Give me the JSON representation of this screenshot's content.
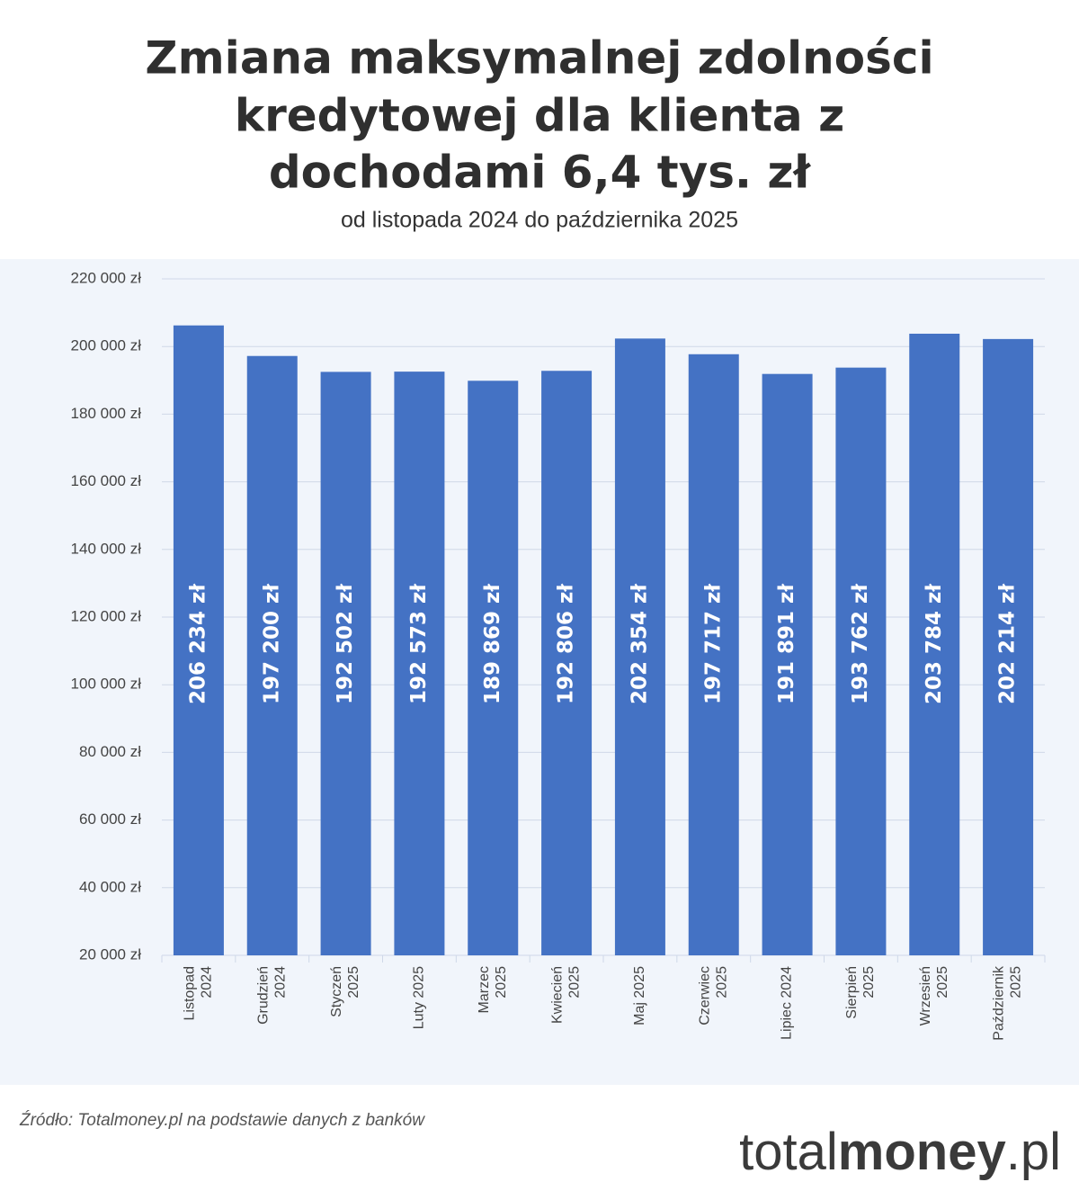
{
  "chart_data": {
    "type": "bar",
    "title": [
      "Zmiana maksymalnej zdolności",
      "kredytowej dla klienta z",
      "dochodami 6,4 tys. zł"
    ],
    "subtitle": "od listopada 2024 do października 2025",
    "categories": [
      "Listopad\n2024",
      "Grudzień\n2024",
      "Styczeń\n2025",
      "Luty 2025",
      "Marzec\n2025",
      "Kwiecień\n2025",
      "Maj 2025",
      "Czerwiec\n2025",
      "Lipiec 2024",
      "Sierpień\n2025",
      "Wrzesień\n2025",
      "Październik\n2025"
    ],
    "values": [
      206234,
      197200,
      192502,
      192573,
      189869,
      192806,
      202354,
      197717,
      191891,
      193762,
      203784,
      202214
    ],
    "value_labels": [
      "206 234 zł",
      "197 200 zł",
      "192 502 zł",
      "192 573 zł",
      "189 869 zł",
      "192 806 zł",
      "202 354 zł",
      "197 717 zł",
      "191 891 zł",
      "193 762 zł",
      "203 784 zł",
      "202 214 zł"
    ],
    "color": "#4472c4",
    "ylim": [
      20000,
      220000
    ],
    "yticks": [
      {
        "value": 20000,
        "label": "20 000 zł"
      },
      {
        "value": 40000,
        "label": "40 000 zł"
      },
      {
        "value": 60000,
        "label": "60 000 zł"
      },
      {
        "value": 80000,
        "label": "80 000 zł"
      },
      {
        "value": 100000,
        "label": "100 000 zł"
      },
      {
        "value": 120000,
        "label": "120 000 zł"
      },
      {
        "value": 140000,
        "label": "140 000 zł"
      },
      {
        "value": 160000,
        "label": "160 000 zł"
      },
      {
        "value": 180000,
        "label": "180 000 zł"
      },
      {
        "value": 200000,
        "label": "200 000 zł"
      },
      {
        "value": 220000,
        "label": "220 000 zł"
      }
    ],
    "grid": true
  },
  "source": "Źródło: Totalmoney.pl na podstawie danych z banków",
  "logo": {
    "prefix": "total",
    "bold": "money",
    "suffix": ".pl"
  }
}
